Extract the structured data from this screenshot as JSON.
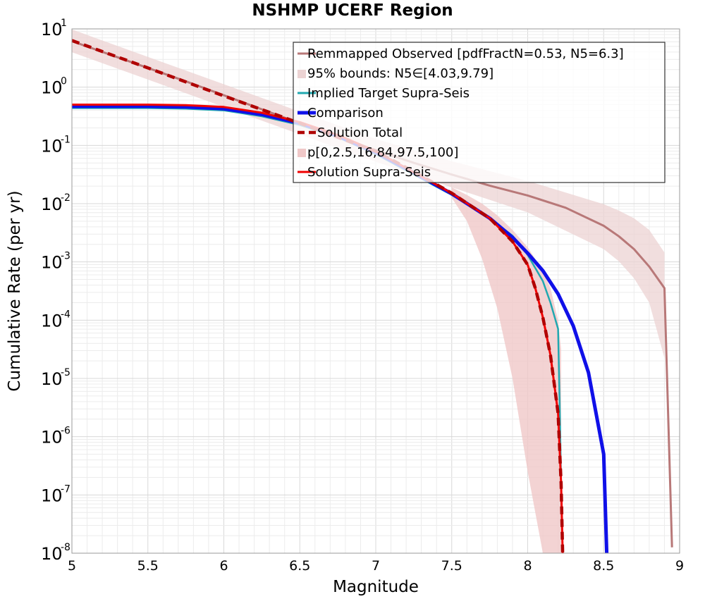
{
  "chart_data": {
    "type": "line",
    "title": "NSHMP UCERF Region",
    "xlabel": "Magnitude",
    "ylabel": "Cumulative Rate (per yr)",
    "xlim": [
      5,
      9
    ],
    "ylim_log10": [
      -8,
      1
    ],
    "y_scale": "log",
    "grid": true,
    "legend_position": "top-right",
    "x_ticks": [
      "5",
      "5.5",
      "6",
      "6.5",
      "7",
      "7.5",
      "8",
      "8.5",
      "9"
    ],
    "y_ticks": [
      {
        "base": "10",
        "exp": "1"
      },
      {
        "base": "10",
        "exp": "0"
      },
      {
        "base": "10",
        "exp": "-1"
      },
      {
        "base": "10",
        "exp": "-2"
      },
      {
        "base": "10",
        "exp": "-3"
      },
      {
        "base": "10",
        "exp": "-4"
      },
      {
        "base": "10",
        "exp": "-5"
      },
      {
        "base": "10",
        "exp": "-6"
      },
      {
        "base": "10",
        "exp": "-7"
      },
      {
        "base": "10",
        "exp": "-8"
      }
    ],
    "legend": [
      {
        "label": "Remmapped Observed [pdfFractN=0.53, N5=6.3]",
        "color": "#b87878",
        "style": "line"
      },
      {
        "label": "95% bounds: N5∈[4.03,9.79]",
        "color": "#ecd3d3",
        "style": "band"
      },
      {
        "label": "Implied Target Supra-Seis",
        "color": "#20a8b0",
        "style": "line"
      },
      {
        "label": "Comparison",
        "color": "#1010e8",
        "style": "thick-line"
      },
      {
        "label": "Solution Total",
        "color": "#b00000",
        "style": "dashed"
      },
      {
        "label": "p[0,2.5,16,84,97.5,100]",
        "color": "#f0c8c8",
        "style": "band"
      },
      {
        "label": "Solution Supra-Seis",
        "color": "#f00000",
        "style": "line"
      }
    ],
    "series": [
      {
        "name": "Remmapped Observed [pdfFractN=0.53, N5=6.3]",
        "color": "#b87878",
        "x": [
          5.0,
          5.25,
          5.5,
          5.75,
          6.0,
          6.25,
          6.5,
          6.75,
          7.0,
          7.25,
          7.5,
          7.75,
          8.0,
          8.25,
          8.5,
          8.6,
          8.7,
          8.8,
          8.9,
          8.95
        ],
        "log10_y": [
          0.79,
          0.56,
          0.33,
          0.1,
          -0.14,
          -0.38,
          -0.62,
          -0.85,
          -1.08,
          -1.3,
          -1.5,
          -1.69,
          -1.86,
          -2.07,
          -2.38,
          -2.56,
          -2.78,
          -3.08,
          -3.45,
          -7.9
        ]
      },
      {
        "name": "95% bounds: N5∈[4.03,9.79]",
        "color": "#ecd3d3",
        "x": [
          5.0,
          5.5,
          6.0,
          6.5,
          7.0,
          7.5,
          8.0,
          8.5,
          8.6,
          8.7,
          8.8,
          8.9
        ],
        "log10_y_upper": [
          0.99,
          0.52,
          0.05,
          -0.42,
          -0.89,
          -1.27,
          -1.61,
          -2.01,
          -2.12,
          -2.25,
          -2.45,
          -2.84
        ],
        "log10_y_lower": [
          0.6,
          0.13,
          -0.34,
          -0.81,
          -1.28,
          -1.72,
          -2.15,
          -2.78,
          -2.99,
          -3.28,
          -3.7,
          -4.65
        ]
      },
      {
        "name": "Implied Target Supra-Seis",
        "color": "#20a8b0",
        "x": [
          5.0,
          5.5,
          5.75,
          6.0,
          6.25,
          6.5,
          6.75,
          7.0,
          7.25,
          7.5,
          7.75,
          7.9,
          8.0,
          8.1,
          8.15,
          8.2,
          8.21,
          8.22,
          8.23
        ],
        "log10_y": [
          -0.36,
          -0.36,
          -0.37,
          -0.4,
          -0.5,
          -0.65,
          -0.86,
          -1.15,
          -1.5,
          -1.85,
          -2.25,
          -2.55,
          -2.88,
          -3.33,
          -3.7,
          -4.15,
          -5.4,
          -6.8,
          -8.0
        ]
      },
      {
        "name": "Comparison",
        "color": "#1010e8",
        "x": [
          5.0,
          5.5,
          5.75,
          6.0,
          6.25,
          6.5,
          6.75,
          7.0,
          7.25,
          7.5,
          7.75,
          7.9,
          8.0,
          8.1,
          8.2,
          8.3,
          8.4,
          8.5,
          8.52
        ],
        "log10_y": [
          -0.33,
          -0.33,
          -0.34,
          -0.37,
          -0.47,
          -0.62,
          -0.84,
          -1.12,
          -1.47,
          -1.83,
          -2.25,
          -2.58,
          -2.85,
          -3.15,
          -3.55,
          -4.1,
          -4.9,
          -6.3,
          -8.0
        ]
      },
      {
        "name": "Solution Total",
        "color": "#b00000",
        "x": [
          5.0,
          5.5,
          6.0,
          6.5,
          7.0,
          7.25,
          7.5,
          7.75,
          7.9,
          8.0,
          8.05,
          8.1,
          8.15,
          8.2,
          8.22,
          8.23
        ],
        "log10_y": [
          0.8,
          0.33,
          -0.15,
          -0.62,
          -1.1,
          -1.45,
          -1.82,
          -2.25,
          -2.65,
          -3.05,
          -3.45,
          -3.95,
          -4.6,
          -5.6,
          -6.8,
          -8.0
        ]
      },
      {
        "name": "p[0,2.5,16,84,97.5,100]",
        "color": "#f0c8c8",
        "x": [
          7.5,
          7.6,
          7.7,
          7.8,
          7.9,
          8.0,
          8.1,
          8.15,
          8.2,
          8.22
        ],
        "log10_y_upper": [
          -1.72,
          -1.85,
          -2.0,
          -2.2,
          -2.45,
          -2.75,
          -3.15,
          -3.45,
          -4.0,
          -4.5
        ],
        "log10_y_lower": [
          -1.9,
          -2.3,
          -2.95,
          -3.8,
          -5.0,
          -6.6,
          -8.0,
          -8.0,
          -8.0,
          -8.0
        ]
      },
      {
        "name": "Solution Supra-Seis",
        "color": "#f00000",
        "x": [
          5.0,
          5.5,
          5.75,
          6.0,
          6.25,
          6.5,
          6.75,
          7.0,
          7.25,
          7.5,
          7.75,
          7.9,
          8.0,
          8.05,
          8.1,
          8.15,
          8.2,
          8.22,
          8.23
        ],
        "log10_y": [
          -0.3,
          -0.3,
          -0.31,
          -0.34,
          -0.44,
          -0.6,
          -0.82,
          -1.1,
          -1.46,
          -1.82,
          -2.25,
          -2.65,
          -3.05,
          -3.45,
          -3.95,
          -4.6,
          -5.6,
          -6.8,
          -8.0
        ]
      }
    ]
  }
}
